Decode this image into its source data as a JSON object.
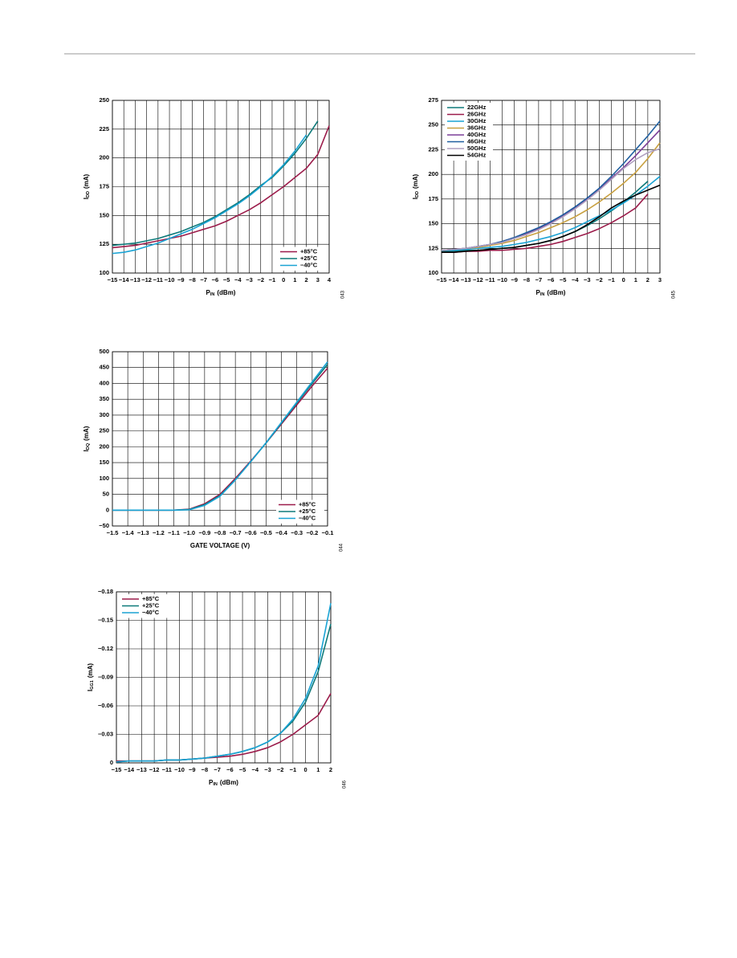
{
  "chart_data": [
    {
      "type": "line",
      "x_label": {
        "base": "P",
        "sub": "IN",
        "rest": "(dBm)"
      },
      "y_label": {
        "base": "I",
        "sub": "DD",
        "rest": "(mA)"
      },
      "figure_code": "043",
      "grid": true,
      "legend": "lower right",
      "x": [
        -15,
        -14,
        -13,
        -12,
        -11,
        -10,
        -9,
        -8,
        -7,
        -6,
        -5,
        -4,
        -3,
        -2,
        -1,
        0,
        1,
        2,
        3,
        4
      ],
      "xlim": [
        -15,
        4
      ],
      "xticks": [
        {
          "value": -15,
          "label": "−15"
        },
        {
          "value": -14,
          "label": "−14"
        },
        {
          "value": -13,
          "label": "−13"
        },
        {
          "value": -12,
          "label": "−12"
        },
        {
          "value": -11,
          "label": "−11"
        },
        {
          "value": -10,
          "label": "−10"
        },
        {
          "value": -9,
          "label": "−9"
        },
        {
          "value": -8,
          "label": "−8"
        },
        {
          "value": -7,
          "label": "−7"
        },
        {
          "value": -6,
          "label": "−6"
        },
        {
          "value": -5,
          "label": "−5"
        },
        {
          "value": -4,
          "label": "−4"
        },
        {
          "value": -3,
          "label": "−3"
        },
        {
          "value": -2,
          "label": "−2"
        },
        {
          "value": -1,
          "label": "−1"
        },
        0,
        1,
        2,
        3,
        4
      ],
      "ylim": [
        100,
        250
      ],
      "yticks": [
        100,
        125,
        150,
        175,
        200,
        225,
        250
      ],
      "series": [
        {
          "name": "+85°C",
          "color": "#9b1b4a",
          "values": [
            122,
            123,
            124,
            126,
            128,
            130,
            132,
            135,
            138,
            141,
            145,
            150,
            155,
            161,
            168,
            175,
            183,
            191,
            203,
            228
          ]
        },
        {
          "name": "+25°C",
          "color": "#0e7a7a",
          "values": [
            124,
            125,
            126,
            128,
            130,
            133,
            136,
            140,
            144,
            149,
            155,
            161,
            168,
            176,
            183,
            193,
            204,
            217,
            232,
            null
          ]
        },
        {
          "name": "−40°C",
          "color": "#1aa3d4",
          "values": [
            117,
            118,
            120,
            123,
            126,
            130,
            134,
            138,
            143,
            148,
            154,
            160,
            167,
            175,
            184,
            194,
            206,
            220,
            null,
            null
          ]
        }
      ]
    },
    {
      "type": "line",
      "x_label": {
        "base": "P",
        "sub": "IN",
        "rest": "(dBm)"
      },
      "y_label": {
        "base": "I",
        "sub": "DD",
        "rest": "(mA)"
      },
      "figure_code": "045",
      "grid": true,
      "legend": "upper left",
      "x": [
        -15,
        -14,
        -13,
        -12,
        -11,
        -10,
        -9,
        -8,
        -7,
        -6,
        -5,
        -4,
        -3,
        -2,
        -1,
        0,
        1,
        2,
        3
      ],
      "xlim": [
        -15,
        3
      ],
      "xticks": [
        {
          "value": -15,
          "label": "−15"
        },
        {
          "value": -14,
          "label": "−14"
        },
        {
          "value": -13,
          "label": "−13"
        },
        {
          "value": -12,
          "label": "−12"
        },
        {
          "value": -11,
          "label": "−11"
        },
        {
          "value": -10,
          "label": "−10"
        },
        {
          "value": -9,
          "label": "−9"
        },
        {
          "value": -8,
          "label": "−8"
        },
        {
          "value": -7,
          "label": "−7"
        },
        {
          "value": -6,
          "label": "−6"
        },
        {
          "value": -5,
          "label": "−5"
        },
        {
          "value": -4,
          "label": "−4"
        },
        {
          "value": -3,
          "label": "−3"
        },
        {
          "value": -2,
          "label": "−2"
        },
        {
          "value": -1,
          "label": "−1"
        },
        0,
        1,
        2,
        3
      ],
      "ylim": [
        100,
        275
      ],
      "yticks": [
        100,
        125,
        150,
        175,
        200,
        225,
        250,
        275
      ],
      "series": [
        {
          "name": "22GHz",
          "color": "#0e7a7a",
          "values": [
            122,
            122,
            123,
            123,
            124,
            125,
            126,
            128,
            130,
            133,
            137,
            142,
            148,
            155,
            163,
            172,
            182,
            193,
            null
          ]
        },
        {
          "name": "26GHz",
          "color": "#9b1b4a",
          "values": [
            121,
            121,
            122,
            122,
            123,
            123,
            124,
            125,
            127,
            129,
            132,
            136,
            140,
            145,
            151,
            158,
            166,
            180,
            null
          ]
        },
        {
          "name": "30GHz",
          "color": "#1aa3d4",
          "values": [
            123,
            123,
            124,
            125,
            126,
            127,
            129,
            131,
            134,
            137,
            141,
            146,
            152,
            158,
            164,
            171,
            179,
            188,
            198
          ]
        },
        {
          "name": "36GHz",
          "color": "#c8a040",
          "values": [
            123,
            124,
            125,
            126,
            128,
            130,
            133,
            137,
            141,
            146,
            151,
            157,
            164,
            172,
            181,
            191,
            202,
            216,
            232
          ]
        },
        {
          "name": "40GHz",
          "color": "#7b3f99",
          "values": [
            123,
            124,
            125,
            127,
            129,
            132,
            136,
            140,
            145,
            151,
            158,
            166,
            175,
            185,
            196,
            207,
            219,
            232,
            245
          ]
        },
        {
          "name": "46GHz",
          "color": "#2060a0",
          "values": [
            123,
            124,
            125,
            127,
            129,
            132,
            136,
            141,
            146,
            152,
            159,
            167,
            176,
            186,
            198,
            211,
            225,
            239,
            254
          ]
        },
        {
          "name": "50GHz",
          "color": "#b0a0c0",
          "values": [
            123,
            124,
            125,
            127,
            129,
            131,
            135,
            139,
            144,
            150,
            157,
            165,
            174,
            184,
            195,
            206,
            215,
            222,
            226
          ]
        },
        {
          "name": "54GHz",
          "color": "#000000",
          "values": [
            121,
            121,
            122,
            123,
            124,
            125,
            126,
            128,
            130,
            133,
            137,
            142,
            149,
            157,
            166,
            173,
            179,
            184,
            189
          ]
        }
      ]
    },
    {
      "type": "line",
      "x_label": "GATE VOLTAGE (V)",
      "y_label": {
        "base": "I",
        "sub": "DQ",
        "rest": "(mA)"
      },
      "figure_code": "044",
      "grid": true,
      "legend": "lower right",
      "x": [
        -1.5,
        -1.4,
        -1.3,
        -1.2,
        -1.1,
        -1.0,
        -0.9,
        -0.8,
        -0.7,
        -0.6,
        -0.5,
        -0.4,
        -0.3,
        -0.2,
        -0.1
      ],
      "xlim": [
        -1.5,
        -0.1
      ],
      "xticks": [
        {
          "value": -1.5,
          "label": "−1.5"
        },
        {
          "value": -1.4,
          "label": "−1.4"
        },
        {
          "value": -1.3,
          "label": "−1.3"
        },
        {
          "value": -1.2,
          "label": "−1.2"
        },
        {
          "value": -1.1,
          "label": "−1.1"
        },
        {
          "value": -1.0,
          "label": "−1.0"
        },
        {
          "value": -0.9,
          "label": "−0.9"
        },
        {
          "value": -0.8,
          "label": "−0.8"
        },
        {
          "value": -0.7,
          "label": "−0.7"
        },
        {
          "value": -0.6,
          "label": "−0.6"
        },
        {
          "value": -0.5,
          "label": "−0.5"
        },
        {
          "value": -0.4,
          "label": "−0.4"
        },
        {
          "value": -0.3,
          "label": "−0.3"
        },
        {
          "value": -0.2,
          "label": "−0.2"
        },
        {
          "value": -0.1,
          "label": "−0.1"
        }
      ],
      "ylim": [
        -50,
        500
      ],
      "yticks": [
        {
          "value": -50,
          "label": "−50"
        },
        0,
        50,
        100,
        150,
        200,
        250,
        300,
        350,
        400,
        450,
        500
      ],
      "series": [
        {
          "name": "+85°C",
          "color": "#9b1b4a",
          "values": [
            0,
            0,
            0,
            0,
            0,
            3,
            20,
            50,
            100,
            155,
            212,
            272,
            332,
            392,
            448
          ]
        },
        {
          "name": "+25°C",
          "color": "#0e7a7a",
          "values": [
            0,
            0,
            0,
            0,
            0,
            2,
            17,
            46,
            96,
            153,
            212,
            275,
            338,
            400,
            460
          ]
        },
        {
          "name": "−40°C",
          "color": "#1aa3d4",
          "values": [
            0,
            0,
            0,
            0,
            0,
            1,
            15,
            44,
            95,
            153,
            213,
            277,
            341,
            405,
            468
          ]
        }
      ]
    },
    {
      "type": "line",
      "x_label": {
        "base": "P",
        "sub": "IN",
        "rest": "(dBm)"
      },
      "y_label": {
        "base": "I",
        "sub": "GG1",
        "rest": "(mA)"
      },
      "figure_code": "046",
      "grid": true,
      "legend": "upper left",
      "x": [
        -15,
        -14,
        -13,
        -12,
        -11,
        -10,
        -9,
        -8,
        -7,
        -6,
        -5,
        -4,
        -3,
        -2,
        -1,
        0,
        1,
        2
      ],
      "xlim": [
        -15,
        2
      ],
      "xticks": [
        {
          "value": -15,
          "label": "−15"
        },
        {
          "value": -14,
          "label": "−14"
        },
        {
          "value": -13,
          "label": "−13"
        },
        {
          "value": -12,
          "label": "−12"
        },
        {
          "value": -11,
          "label": "−11"
        },
        {
          "value": -10,
          "label": "−10"
        },
        {
          "value": -9,
          "label": "−9"
        },
        {
          "value": -8,
          "label": "−8"
        },
        {
          "value": -7,
          "label": "−7"
        },
        {
          "value": -6,
          "label": "−6"
        },
        {
          "value": -5,
          "label": "−5"
        },
        {
          "value": -4,
          "label": "−4"
        },
        {
          "value": -3,
          "label": "−3"
        },
        {
          "value": -2,
          "label": "−2"
        },
        {
          "value": -1,
          "label": "−1"
        },
        0,
        1,
        2
      ],
      "ylim": [
        0,
        -0.18
      ],
      "yticks": [
        0,
        {
          "value": -0.03,
          "label": "−0.03"
        },
        {
          "value": -0.06,
          "label": "−0.06"
        },
        {
          "value": -0.09,
          "label": "−0.09"
        },
        {
          "value": -0.12,
          "label": "−0.12"
        },
        {
          "value": -0.15,
          "label": "−0.15"
        },
        {
          "value": -0.18,
          "label": "−0.18"
        }
      ],
      "series": [
        {
          "name": "+85°C",
          "color": "#9b1b4a",
          "values": [
            -0.002,
            -0.002,
            -0.002,
            -0.002,
            -0.003,
            -0.003,
            -0.004,
            -0.005,
            -0.006,
            -0.007,
            -0.009,
            -0.012,
            -0.016,
            -0.022,
            -0.03,
            -0.04,
            -0.05,
            -0.073
          ]
        },
        {
          "name": "+25°C",
          "color": "#0e7a7a",
          "values": [
            -0.001,
            -0.002,
            -0.002,
            -0.002,
            -0.003,
            -0.003,
            -0.004,
            -0.005,
            -0.007,
            -0.009,
            -0.012,
            -0.016,
            -0.022,
            -0.031,
            -0.044,
            -0.064,
            -0.096,
            -0.146
          ]
        },
        {
          "name": "−40°C",
          "color": "#1aa3d4",
          "values": [
            -0.001,
            -0.002,
            -0.002,
            -0.002,
            -0.003,
            -0.003,
            -0.004,
            -0.005,
            -0.007,
            -0.009,
            -0.012,
            -0.016,
            -0.022,
            -0.031,
            -0.046,
            -0.068,
            -0.102,
            -0.168
          ]
        }
      ]
    }
  ]
}
